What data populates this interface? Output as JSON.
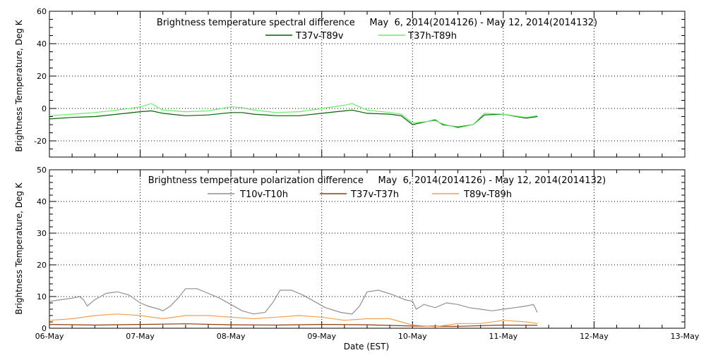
{
  "chart_data": [
    {
      "type": "line",
      "title": "Brightness temperature spectral difference     May  6, 2014(2014126) - May 12, 2014(2014132)",
      "xlabel": "",
      "ylabel": "Brightness Temperature, Deg K",
      "xlim": [
        "2014-05-06",
        "2014-05-13"
      ],
      "ylim": [
        -30,
        60
      ],
      "yticks": [
        -20,
        0,
        20,
        40,
        60
      ],
      "grid": true,
      "legend_position": "top-center",
      "series": [
        {
          "name": "T37v-T89v",
          "color": "#006400",
          "points": [
            [
              "2014-05-06 00:00",
              -6.5
            ],
            [
              "2014-05-06 06:00",
              -5.5
            ],
            [
              "2014-05-06 12:00",
              -5
            ],
            [
              "2014-05-06 18:00",
              -3.5
            ],
            [
              "2014-05-07 00:00",
              -2
            ],
            [
              "2014-05-07 03:00",
              -1.5
            ],
            [
              "2014-05-07 06:00",
              -3
            ],
            [
              "2014-05-07 12:00",
              -4.5
            ],
            [
              "2014-05-07 18:00",
              -4
            ],
            [
              "2014-05-08 00:00",
              -2.5
            ],
            [
              "2014-05-08 03:00",
              -2.5
            ],
            [
              "2014-05-08 06:00",
              -3.5
            ],
            [
              "2014-05-08 12:00",
              -4.5
            ],
            [
              "2014-05-08 18:00",
              -4.5
            ],
            [
              "2014-05-09 00:00",
              -3
            ],
            [
              "2014-05-09 06:00",
              -1.5
            ],
            [
              "2014-05-09 08:00",
              -1
            ],
            [
              "2014-05-09 12:00",
              -3
            ],
            [
              "2014-05-09 18:00",
              -3.5
            ],
            [
              "2014-05-09 21:00",
              -4.5
            ],
            [
              "2014-05-10 00:00",
              -10
            ],
            [
              "2014-05-10 06:00",
              -7
            ],
            [
              "2014-05-10 08:00",
              -10
            ],
            [
              "2014-05-10 12:00",
              -11.5
            ],
            [
              "2014-05-10 16:00",
              -10
            ],
            [
              "2014-05-10 19:00",
              -4
            ],
            [
              "2014-05-11 00:00",
              -3.5
            ],
            [
              "2014-05-11 06:00",
              -6
            ],
            [
              "2014-05-11 09:00",
              -5
            ]
          ]
        },
        {
          "name": "T37h-T89h",
          "color": "#66ee66",
          "points": [
            [
              "2014-05-06 00:00",
              -4.5
            ],
            [
              "2014-05-06 06:00",
              -3.5
            ],
            [
              "2014-05-06 12:00",
              -2.5
            ],
            [
              "2014-05-06 18:00",
              -1
            ],
            [
              "2014-05-07 00:00",
              1
            ],
            [
              "2014-05-07 03:00",
              3
            ],
            [
              "2014-05-07 06:00",
              -1
            ],
            [
              "2014-05-07 12:00",
              -2
            ],
            [
              "2014-05-07 18:00",
              -1.5
            ],
            [
              "2014-05-08 00:00",
              1
            ],
            [
              "2014-05-08 03:00",
              0.5
            ],
            [
              "2014-05-08 06:00",
              -1
            ],
            [
              "2014-05-08 12:00",
              -2.5
            ],
            [
              "2014-05-08 18:00",
              -2
            ],
            [
              "2014-05-09 00:00",
              0
            ],
            [
              "2014-05-09 06:00",
              2
            ],
            [
              "2014-05-09 08:00",
              3
            ],
            [
              "2014-05-09 12:00",
              -1
            ],
            [
              "2014-05-09 18:00",
              -2.5
            ],
            [
              "2014-05-09 21:00",
              -3.5
            ],
            [
              "2014-05-10 00:00",
              -9
            ],
            [
              "2014-05-10 06:00",
              -7.5
            ],
            [
              "2014-05-10 08:00",
              -9.5
            ],
            [
              "2014-05-10 12:00",
              -12
            ],
            [
              "2014-05-10 16:00",
              -10
            ],
            [
              "2014-05-10 19:00",
              -3
            ],
            [
              "2014-05-11 00:00",
              -3.5
            ],
            [
              "2014-05-11 06:00",
              -5.5
            ],
            [
              "2014-05-11 09:00",
              -4.5
            ]
          ]
        }
      ]
    },
    {
      "type": "line",
      "title": "Brightness temperature polarization difference     May  6, 2014(2014126) - May 12, 2014(2014132)",
      "xlabel": "Date (EST)",
      "ylabel": "Brightness Temperature, Deg K",
      "xlim": [
        "2014-05-06",
        "2014-05-13"
      ],
      "ylim": [
        0,
        50
      ],
      "yticks": [
        0,
        10,
        20,
        30,
        40,
        50
      ],
      "xtick_labels": [
        "06-May",
        "07-May",
        "08-May",
        "09-May",
        "10-May",
        "11-May",
        "12-May",
        "13-May"
      ],
      "grid": true,
      "legend_position": "top-center",
      "series": [
        {
          "name": "T10v-T10h",
          "color": "#909090",
          "points": [
            [
              "2014-05-06 00:00",
              8.5
            ],
            [
              "2014-05-06 03:00",
              9
            ],
            [
              "2014-05-06 06:00",
              9.5
            ],
            [
              "2014-05-06 08:00",
              10
            ],
            [
              "2014-05-06 09:00",
              9
            ],
            [
              "2014-05-06 10:00",
              7
            ],
            [
              "2014-05-06 12:00",
              9
            ],
            [
              "2014-05-06 15:00",
              11
            ],
            [
              "2014-05-06 18:00",
              11.5
            ],
            [
              "2014-05-06 21:00",
              10.5
            ],
            [
              "2014-05-07 00:00",
              8
            ],
            [
              "2014-05-07 02:00",
              7
            ],
            [
              "2014-05-07 05:00",
              6
            ],
            [
              "2014-05-07 06:00",
              5.5
            ],
            [
              "2014-05-07 08:00",
              7
            ],
            [
              "2014-05-07 10:00",
              9.5
            ],
            [
              "2014-05-07 12:00",
              12.5
            ],
            [
              "2014-05-07 15:00",
              12.5
            ],
            [
              "2014-05-07 18:00",
              11
            ],
            [
              "2014-05-07 21:00",
              9.5
            ],
            [
              "2014-05-08 00:00",
              7.5
            ],
            [
              "2014-05-08 03:00",
              5.5
            ],
            [
              "2014-05-08 06:00",
              4.5
            ],
            [
              "2014-05-08 09:00",
              5
            ],
            [
              "2014-05-08 11:00",
              8
            ],
            [
              "2014-05-08 13:00",
              12
            ],
            [
              "2014-05-08 16:00",
              12
            ],
            [
              "2014-05-08 19:00",
              10.5
            ],
            [
              "2014-05-08 22:00",
              8.5
            ],
            [
              "2014-05-09 01:00",
              6.5
            ],
            [
              "2014-05-09 05:00",
              5
            ],
            [
              "2014-05-09 08:00",
              4.5
            ],
            [
              "2014-05-09 10:00",
              7
            ],
            [
              "2014-05-09 12:00",
              11.5
            ],
            [
              "2014-05-09 15:00",
              12
            ],
            [
              "2014-05-09 19:00",
              10.5
            ],
            [
              "2014-05-09 22:00",
              9
            ],
            [
              "2014-05-10 00:00",
              8.5
            ],
            [
              "2014-05-10 01:00",
              6
            ],
            [
              "2014-05-10 03:00",
              7.5
            ],
            [
              "2014-05-10 06:00",
              6.5
            ],
            [
              "2014-05-10 09:00",
              8
            ],
            [
              "2014-05-10 12:00",
              7.5
            ],
            [
              "2014-05-10 15:00",
              6.5
            ],
            [
              "2014-05-10 18:00",
              6
            ],
            [
              "2014-05-10 21:00",
              5.5
            ],
            [
              "2014-05-11 00:00",
              6
            ],
            [
              "2014-05-11 03:00",
              6.5
            ],
            [
              "2014-05-11 06:00",
              7
            ],
            [
              "2014-05-11 08:00",
              7.5
            ],
            [
              "2014-05-11 09:00",
              5
            ]
          ]
        },
        {
          "name": "T37v-T37h",
          "color": "#8b3a0e",
          "points": [
            [
              "2014-05-06 00:00",
              1.2
            ],
            [
              "2014-05-06 12:00",
              1.0
            ],
            [
              "2014-05-07 00:00",
              1.2
            ],
            [
              "2014-05-07 12:00",
              1.4
            ],
            [
              "2014-05-08 00:00",
              1.1
            ],
            [
              "2014-05-08 12:00",
              1.0
            ],
            [
              "2014-05-09 00:00",
              1.2
            ],
            [
              "2014-05-09 12:00",
              1.1
            ],
            [
              "2014-05-10 00:00",
              0.7
            ],
            [
              "2014-05-10 12:00",
              0.6
            ],
            [
              "2014-05-11 00:00",
              1.0
            ],
            [
              "2014-05-11 09:00",
              0.9
            ]
          ]
        },
        {
          "name": "T89v-T89h",
          "color": "#f0a050",
          "points": [
            [
              "2014-05-06 00:00",
              2.5
            ],
            [
              "2014-05-06 06:00",
              3
            ],
            [
              "2014-05-06 12:00",
              4
            ],
            [
              "2014-05-06 18:00",
              4.5
            ],
            [
              "2014-05-07 00:00",
              4
            ],
            [
              "2014-05-07 06:00",
              3
            ],
            [
              "2014-05-07 12:00",
              4
            ],
            [
              "2014-05-07 18:00",
              4
            ],
            [
              "2014-05-08 00:00",
              3.5
            ],
            [
              "2014-05-08 06:00",
              3
            ],
            [
              "2014-05-08 12:00",
              3.5
            ],
            [
              "2014-05-08 18:00",
              4
            ],
            [
              "2014-05-09 00:00",
              3.5
            ],
            [
              "2014-05-09 06:00",
              2.5
            ],
            [
              "2014-05-09 12:00",
              3
            ],
            [
              "2014-05-09 18:00",
              3
            ],
            [
              "2014-05-10 00:00",
              1
            ],
            [
              "2014-05-10 06:00",
              0.5
            ],
            [
              "2014-05-10 12:00",
              1.5
            ],
            [
              "2014-05-10 18:00",
              1.5
            ],
            [
              "2014-05-11 00:00",
              2.5
            ],
            [
              "2014-05-11 06:00",
              2
            ],
            [
              "2014-05-11 09:00",
              1.5
            ]
          ]
        }
      ]
    }
  ]
}
